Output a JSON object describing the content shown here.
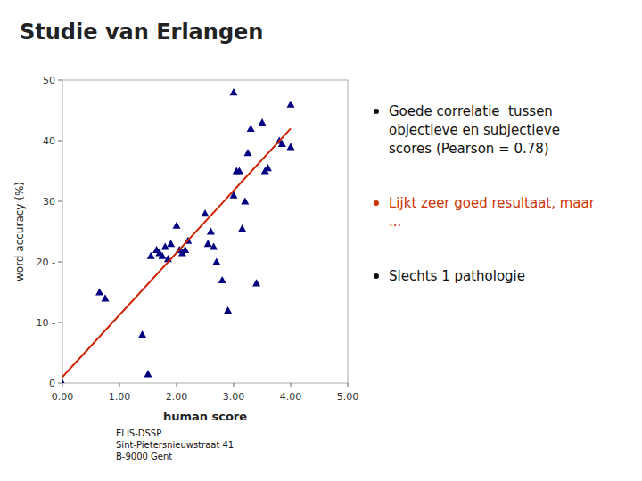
{
  "chart_data": {
    "type": "scatter",
    "title": "Studie van Erlangen",
    "xlabel": "human score",
    "ylabel": "word accuracy (%)",
    "xlim": [
      0.0,
      5.0
    ],
    "ylim": [
      0,
      50
    ],
    "xticks": [
      {
        "value": 0.0,
        "label": "0.00"
      },
      {
        "value": 1.0,
        "label": "1.00"
      },
      {
        "value": 2.0,
        "label": "2.00"
      },
      {
        "value": 3.0,
        "label": "3.00"
      },
      {
        "value": 4.0,
        "label": "4.00"
      },
      {
        "value": 5.0,
        "label": "5.00"
      }
    ],
    "yticks": [
      0,
      {
        "value": 10,
        "label": "10 -"
      },
      {
        "value": 20,
        "label": "20 -"
      },
      30,
      40,
      50
    ],
    "grid": false,
    "series": [
      {
        "type": "scatter",
        "color": "#000080",
        "marker": "triangle",
        "x": [
          0.0,
          0.65,
          0.75,
          1.4,
          1.5,
          1.55,
          1.65,
          1.7,
          1.75,
          1.8,
          1.85,
          1.9,
          2.0,
          2.05,
          2.1,
          2.15,
          2.2,
          2.5,
          2.55,
          2.6,
          2.65,
          2.7,
          2.8,
          2.9,
          3.0,
          3.0,
          3.05,
          3.1,
          3.15,
          3.2,
          3.25,
          3.3,
          3.4,
          3.5,
          3.55,
          3.6,
          3.8,
          3.85,
          4.0,
          4.0
        ],
        "values": [
          0.0,
          15.0,
          14.0,
          8.0,
          1.5,
          21.0,
          22.0,
          21.5,
          21.0,
          22.5,
          20.5,
          23.0,
          26.0,
          22.0,
          21.5,
          22.0,
          23.5,
          28.0,
          23.0,
          25.0,
          22.5,
          20.0,
          17.0,
          12.0,
          31.0,
          48.0,
          35.0,
          35.0,
          25.5,
          30.0,
          38.0,
          42.0,
          16.5,
          43.0,
          35.0,
          35.5,
          40.0,
          39.5,
          39.0,
          46.0
        ]
      },
      {
        "type": "line",
        "color": "#cc2200",
        "x": [
          0.0,
          4.0
        ],
        "values": [
          1.0,
          42.0
        ]
      }
    ],
    "annotations": [
      {
        "text": "Goede correlatie  tussen\nobjectieve en subjectieve\nscores (Pearson = 0.78)",
        "color": "#111111"
      },
      {
        "text": "Lijkt zeer goed resultaat, maar\n...",
        "color": "#cc3300"
      },
      {
        "text": "Slechts 1 pathologie",
        "color": "#111111"
      }
    ],
    "footer": "ELIS-DSSP\nSint-Pietersnieuwstraat 41\nB-9000 Gent"
  }
}
